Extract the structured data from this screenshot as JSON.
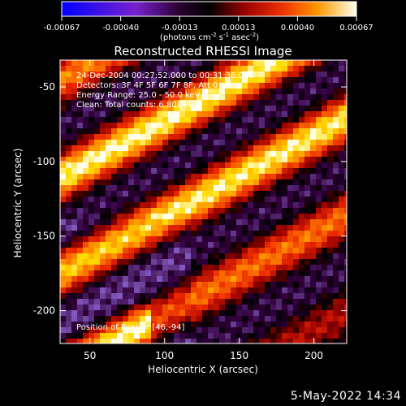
{
  "chart_data": {
    "type": "heatmap",
    "title": "Reconstructed RHESSI Image",
    "xlabel": "Heliocentric X (arcsec)",
    "ylabel": "Heliocentric Y (arcsec)",
    "xlim": [
      30,
      222
    ],
    "ylim": [
      -222,
      -32
    ],
    "xticks": [
      50,
      100,
      150,
      200
    ],
    "yticks": [
      -50,
      -100,
      -150,
      -200
    ],
    "colorbar": {
      "range": [
        -0.00067,
        0.00067
      ],
      "ticks": [
        "-0.00067",
        "-0.00040",
        "-0.00013",
        "0.00013",
        "0.00040",
        "0.00067"
      ],
      "unit_label": "(photons cm",
      "unit_exp1": "-2",
      "unit_mid": " s",
      "unit_exp2": "-1",
      "unit_mid2": " asec",
      "unit_exp3": "-2",
      "unit_end": ")"
    },
    "annotations": [
      "24-Dec-2004 00:27:52.000 to 00:31:36.000",
      "Detectors: 3F 4F 5F 6F 7F 8F, Att 0",
      "Energy Range: 25.0 - 50.0 keV",
      "Clean: Total counts: 6.80E+03"
    ],
    "peak_label": "Position of Peak = [46,-94]",
    "peak": {
      "x": 46,
      "y": -94
    },
    "colors": [
      "#0000ff",
      "#6600cc",
      "#8a5ab8",
      "#220022",
      "#000000",
      "#8a0000",
      "#e52000",
      "#ff7a00",
      "#ffd000",
      "#ffffff"
    ]
  },
  "footer": {
    "timestamp": "5-May-2022 14:34"
  }
}
